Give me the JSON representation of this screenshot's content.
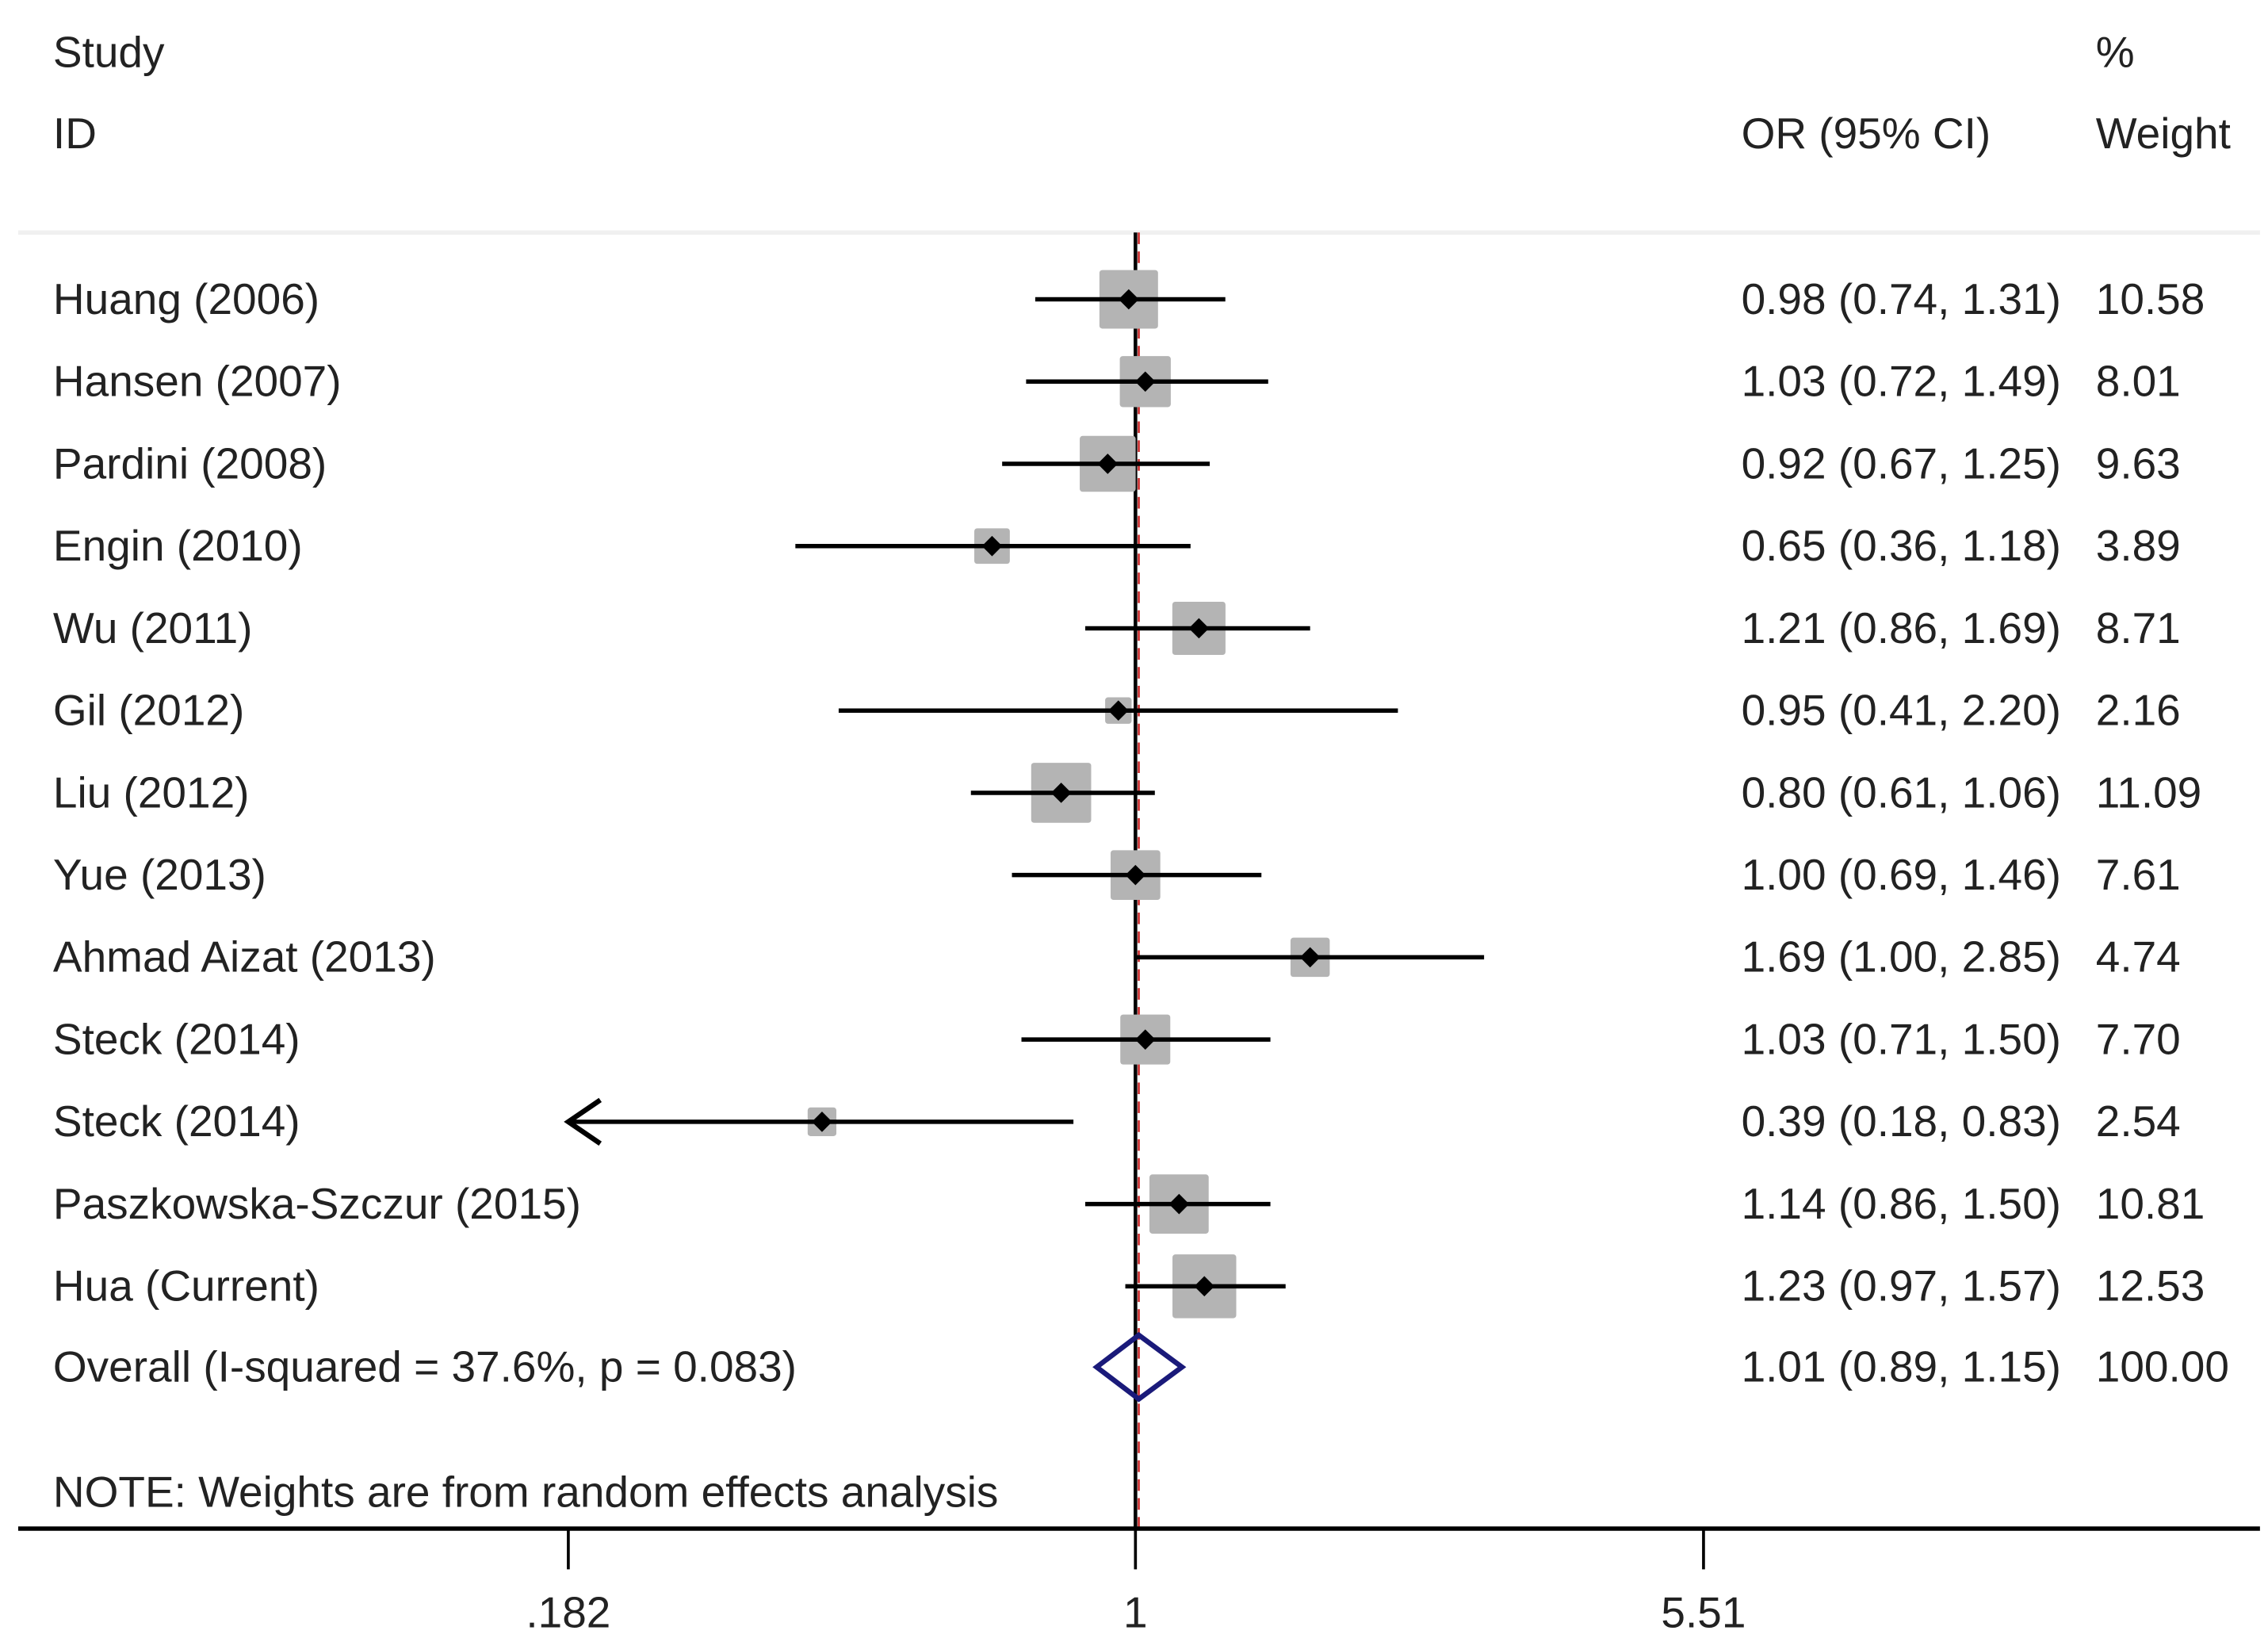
{
  "chart_data": {
    "type": "forest",
    "headers": {
      "study_line1": "Study",
      "study_line2": "ID",
      "or_header": "OR (95% CI)",
      "weight_line1": "%",
      "weight_line2": "Weight"
    },
    "x_scale": "log",
    "xticks": [
      {
        "value": 0.182,
        "label": ".182"
      },
      {
        "value": 1,
        "label": "1"
      },
      {
        "value": 5.51,
        "label": "5.51"
      }
    ],
    "null_line": 1,
    "studies": [
      {
        "label": "Huang (2006)",
        "or": 0.98,
        "lo": 0.74,
        "hi": 1.31,
        "weight": 10.58,
        "ci_text": "0.98 (0.74, 1.31)",
        "weight_text": "10.58"
      },
      {
        "label": "Hansen (2007)",
        "or": 1.03,
        "lo": 0.72,
        "hi": 1.49,
        "weight": 8.01,
        "ci_text": "1.03 (0.72, 1.49)",
        "weight_text": "8.01"
      },
      {
        "label": "Pardini (2008)",
        "or": 0.92,
        "lo": 0.67,
        "hi": 1.25,
        "weight": 9.63,
        "ci_text": "0.92 (0.67, 1.25)",
        "weight_text": "9.63"
      },
      {
        "label": "Engin (2010)",
        "or": 0.65,
        "lo": 0.36,
        "hi": 1.18,
        "weight": 3.89,
        "ci_text": "0.65 (0.36, 1.18)",
        "weight_text": "3.89"
      },
      {
        "label": "Wu (2011)",
        "or": 1.21,
        "lo": 0.86,
        "hi": 1.69,
        "weight": 8.71,
        "ci_text": "1.21 (0.86, 1.69)",
        "weight_text": "8.71"
      },
      {
        "label": "Gil (2012)",
        "or": 0.95,
        "lo": 0.41,
        "hi": 2.2,
        "weight": 2.16,
        "ci_text": "0.95 (0.41, 2.20)",
        "weight_text": "2.16"
      },
      {
        "label": "Liu (2012)",
        "or": 0.8,
        "lo": 0.61,
        "hi": 1.06,
        "weight": 11.09,
        "ci_text": "0.80 (0.61, 1.06)",
        "weight_text": "11.09"
      },
      {
        "label": "Yue (2013)",
        "or": 1.0,
        "lo": 0.69,
        "hi": 1.46,
        "weight": 7.61,
        "ci_text": "1.00 (0.69, 1.46)",
        "weight_text": "7.61"
      },
      {
        "label": "Ahmad Aizat (2013)",
        "or": 1.69,
        "lo": 1.0,
        "hi": 2.85,
        "weight": 4.74,
        "ci_text": "1.69 (1.00, 2.85)",
        "weight_text": "4.74"
      },
      {
        "label": "Steck (2014)",
        "or": 1.03,
        "lo": 0.71,
        "hi": 1.5,
        "weight": 7.7,
        "ci_text": "1.03 (0.71, 1.50)",
        "weight_text": "7.70"
      },
      {
        "label": "Steck (2014)",
        "or": 0.39,
        "lo": 0.18,
        "hi": 0.83,
        "weight": 2.54,
        "ci_text": "0.39 (0.18, 0.83)",
        "weight_text": "2.54"
      },
      {
        "label": "Paszkowska-Szczur (2015)",
        "or": 1.14,
        "lo": 0.86,
        "hi": 1.5,
        "weight": 10.81,
        "ci_text": "1.14 (0.86, 1.50)",
        "weight_text": "10.81"
      },
      {
        "label": "Hua (Current)",
        "or": 1.23,
        "lo": 0.97,
        "hi": 1.57,
        "weight": 12.53,
        "ci_text": "1.23 (0.97, 1.57)",
        "weight_text": "12.53"
      }
    ],
    "overall": {
      "label": "Overall  (I-squared = 37.6%, p = 0.083)",
      "or": 1.01,
      "lo": 0.89,
      "hi": 1.15,
      "ci_text": "1.01 (0.89, 1.15)",
      "weight_text": "100.00"
    },
    "note": "NOTE: Weights are from random effects analysis",
    "colors": {
      "box": "#b4b4b4",
      "diamond": "#1a1a7a",
      "overall_line": "#cc3333",
      "line": "#000000"
    }
  }
}
